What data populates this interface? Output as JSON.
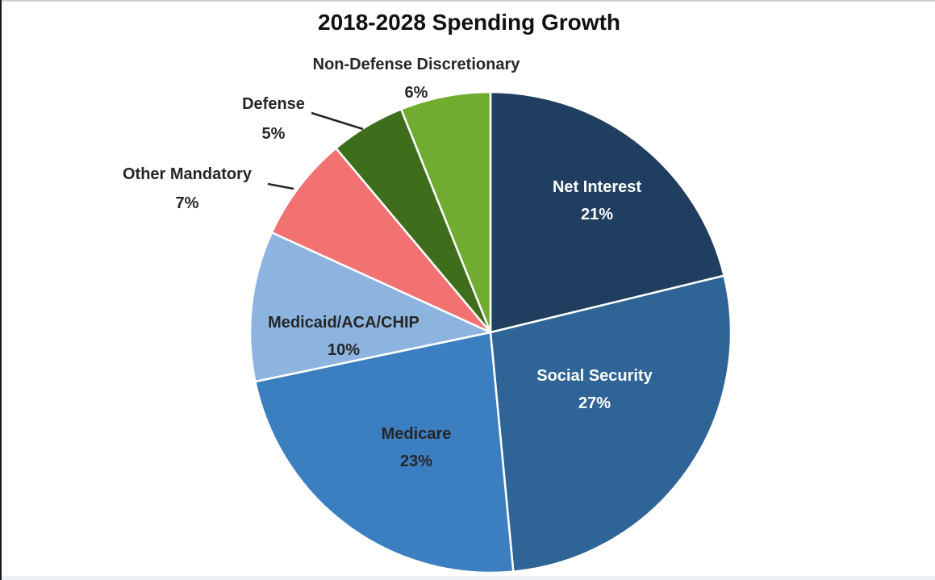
{
  "chart_data": {
    "type": "pie",
    "title": "2018-2028 Spending Growth",
    "slices": [
      {
        "label": "Net Interest",
        "value": 21,
        "value_label": "21%",
        "color": "#203f60",
        "text_color": "#ffffff",
        "label_position": "inside"
      },
      {
        "label": "Social Security",
        "value": 27,
        "value_label": "27%",
        "color": "#2e6496",
        "text_color": "#ffffff",
        "label_position": "inside"
      },
      {
        "label": "Medicare",
        "value": 23,
        "value_label": "23%",
        "color": "#3c7fc1",
        "text_color": "#262626",
        "label_position": "inside"
      },
      {
        "label": "Medicaid/ACA/CHIP",
        "value": 10,
        "value_label": "10%",
        "color": "#8cb4df",
        "text_color": "#262626",
        "label_position": "inside"
      },
      {
        "label": "Other Mandatory",
        "value": 7,
        "value_label": "7%",
        "color": "#f27272",
        "text_color": "#262626",
        "label_position": "outside"
      },
      {
        "label": "Defense",
        "value": 5,
        "value_label": "5%",
        "color": "#3e6d1b",
        "text_color": "#262626",
        "label_position": "outside"
      },
      {
        "label": "Non-Defense Discretionary",
        "value": 6,
        "value_label": "6%",
        "color": "#6fac2f",
        "text_color": "#262626",
        "label_position": "outside"
      }
    ],
    "start_angle": "12 o'clock",
    "direction": "clockwise",
    "legend": "none"
  }
}
